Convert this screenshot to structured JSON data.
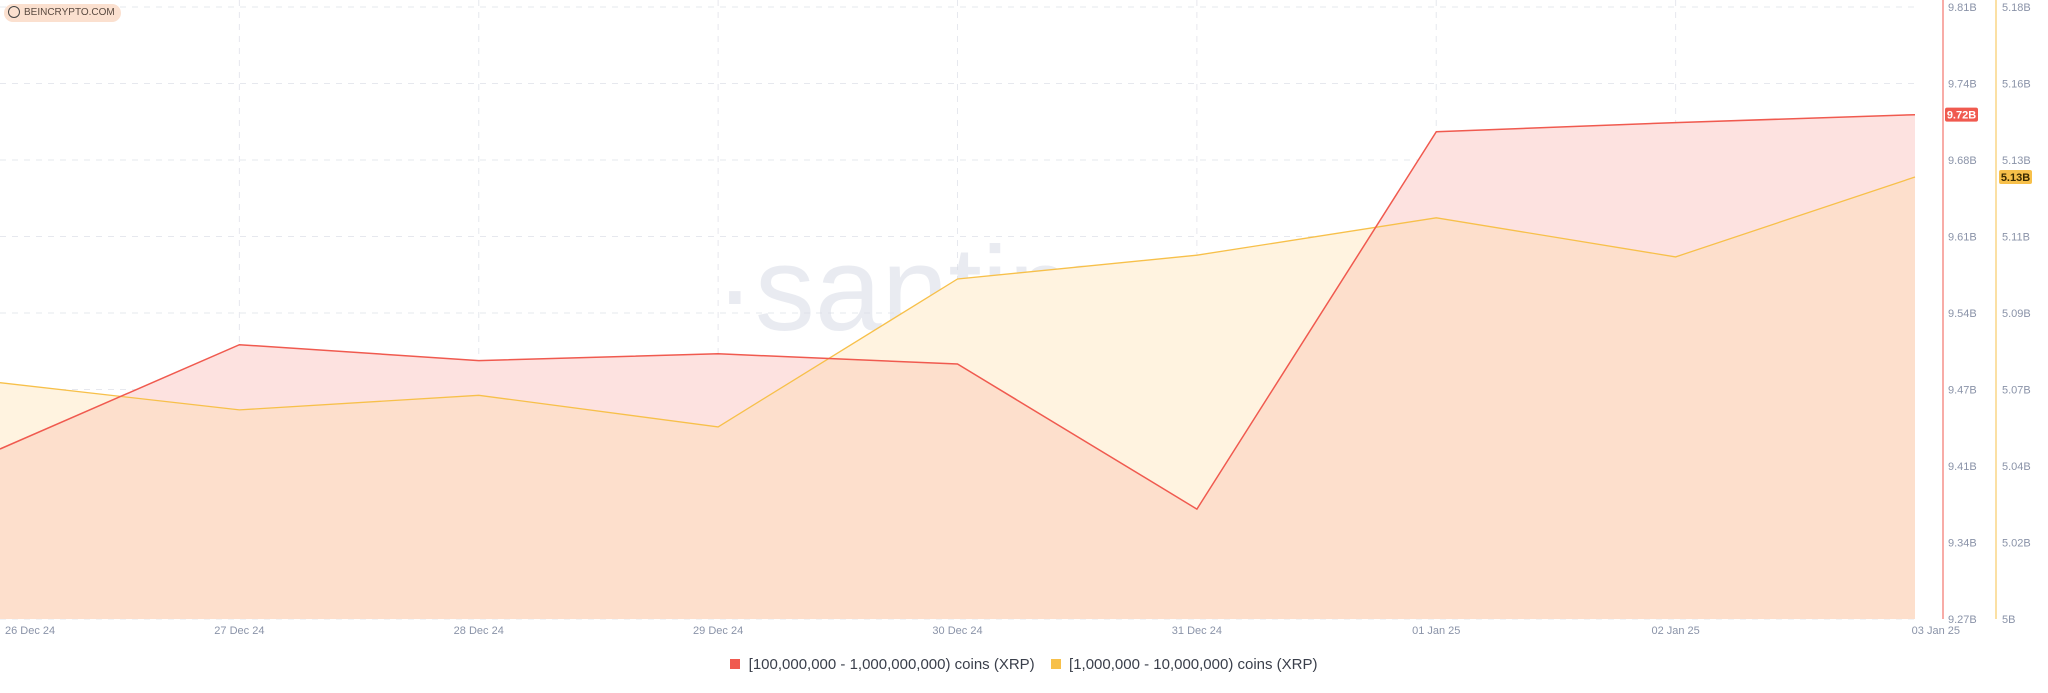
{
  "source_badge": "BEINCRYPTO.COM",
  "watermark": "·santiment·",
  "colors": {
    "series_a": "#f05a4f",
    "series_a_fill": "#fde2e0",
    "series_b": "#f7c04a",
    "series_b_fill": "#fff3e0",
    "overlap_fill": "#fddfcc",
    "grid": "#e6e8ee"
  },
  "legend": {
    "item_a": "[100,000,000 - 1,000,000,000) coins (XRP)",
    "item_b": "[1,000,000 - 10,000,000) coins (XRP)"
  },
  "chart_data": {
    "type": "area",
    "categories": [
      "26 Dec 24",
      "27 Dec 24",
      "28 Dec 24",
      "29 Dec 24",
      "30 Dec 24",
      "31 Dec 24",
      "01 Jan 25",
      "02 Jan 25",
      "03 Jan 25"
    ],
    "series": [
      {
        "name": "[100,000,000 - 1,000,000,000) coins (XRP)",
        "axis": "left",
        "values": [
          9.42,
          9.512,
          9.498,
          9.504,
          9.495,
          9.367,
          9.7,
          9.708,
          9.715
        ],
        "last_value_label": "9.72B"
      },
      {
        "name": "[1,000,000 - 10,000,000) coins (XRP)",
        "axis": "right",
        "values": [
          5.0695,
          5.0615,
          5.0658,
          5.0565,
          5.1,
          5.107,
          5.118,
          5.1065,
          5.13
        ],
        "last_value_label": "5.13B"
      }
    ],
    "left_axis": {
      "ticks": [
        "9.81B",
        "9.74B",
        "9.68B",
        "9.61B",
        "9.54B",
        "9.47B",
        "9.41B",
        "9.34B",
        "9.27B"
      ],
      "ylim": [
        9.27,
        9.81
      ]
    },
    "right_axis": {
      "ticks": [
        "5.18B",
        "5.16B",
        "5.13B",
        "5.11B",
        "5.09B",
        "5.07B",
        "5.04B",
        "5.02B",
        "5B"
      ],
      "ylim": [
        5.0,
        5.18
      ]
    },
    "grid": true,
    "legend_position": "bottom-center"
  }
}
